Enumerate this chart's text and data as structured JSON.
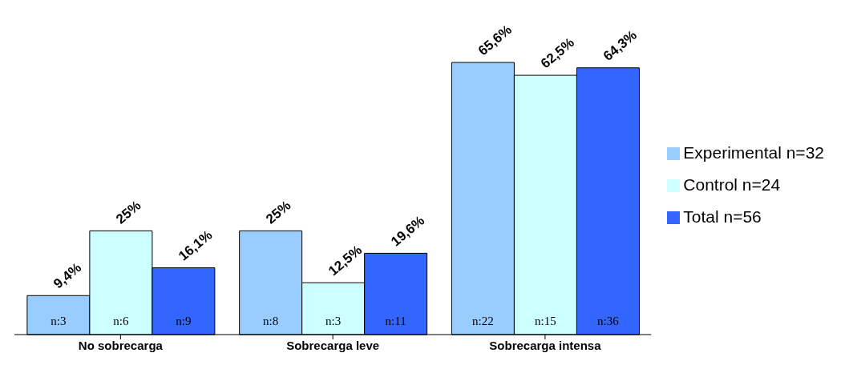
{
  "chart_data": {
    "type": "bar",
    "categories": [
      "No sobrecarga",
      "Sobrecarga leve",
      "Sobrecarga intensa"
    ],
    "series": [
      {
        "name": "Experimental n=32",
        "color": "#99ccff",
        "values": [
          9.4,
          25,
          65.6
        ],
        "value_labels": [
          "9,4%",
          "25%",
          "65,6%"
        ]
      },
      {
        "name": "Control n=24",
        "color": "#ccffff",
        "values": [
          25,
          12.5,
          62.5
        ],
        "value_labels": [
          "25%",
          "12,5%",
          "62,5%"
        ]
      },
      {
        "name": "Total n=56",
        "color": "#3366ff",
        "values": [
          16.1,
          19.6,
          64.3
        ],
        "value_labels": [
          "16,1%",
          "19,6%",
          "64,3%"
        ]
      }
    ],
    "annotations": [
      "n:3",
      "n:6",
      "n:9",
      "n:8",
      "n:3",
      "n:11",
      "n:22",
      "n:15",
      "n:36"
    ],
    "legend": "right",
    "grid": false
  }
}
